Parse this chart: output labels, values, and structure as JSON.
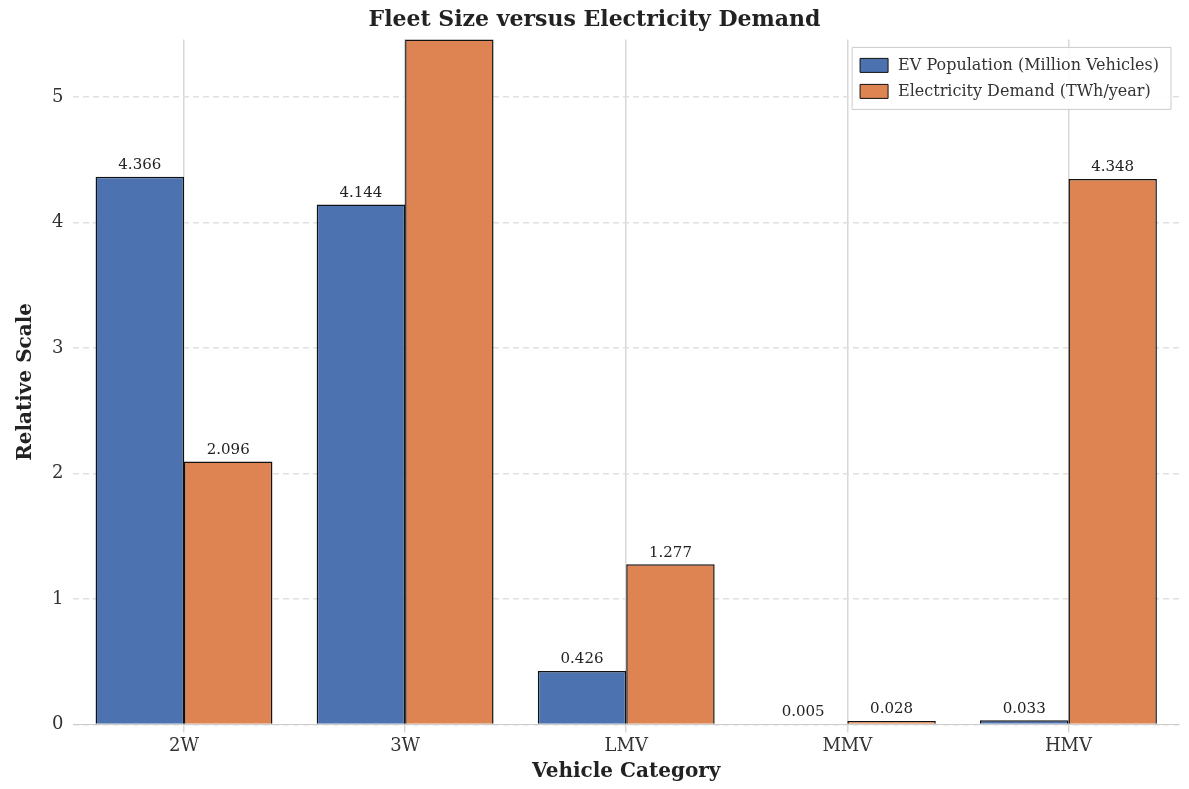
{
  "chart_data": {
    "type": "bar",
    "title": "Fleet Size versus Electricity Demand",
    "xlabel": "Vehicle Category",
    "ylabel": "Relative Scale",
    "categories": [
      "2W",
      "3W",
      "LMV",
      "MMV",
      "HMV"
    ],
    "series": [
      {
        "name": "EV Population (Million Vehicles)",
        "color": "#4c72b0",
        "values": [
          4.366,
          4.144,
          0.426,
          0.005,
          0.033
        ],
        "value_labels": [
          "4.366",
          "4.144",
          "0.426",
          "0.005",
          "0.033"
        ]
      },
      {
        "name": "Electricity Demand (TWh/year)",
        "color": "#dd8452",
        "values": [
          2.096,
          5.46,
          1.277,
          0.028,
          4.348
        ],
        "value_labels": [
          "2.096",
          null,
          "1.277",
          "0.028",
          "4.348"
        ]
      }
    ],
    "ylim": [
      0,
      5.46
    ],
    "yticks": [
      0,
      1,
      2,
      3,
      4,
      5
    ],
    "grid": true,
    "legend": "top right"
  }
}
